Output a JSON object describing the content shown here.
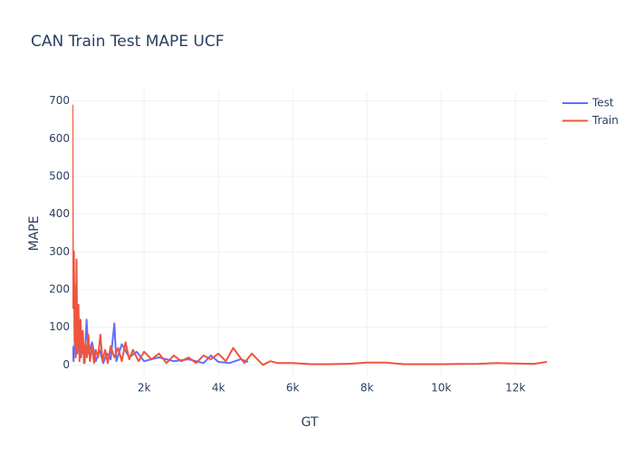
{
  "chart_data": {
    "type": "line",
    "title": "CAN Train Test MAPE UCF",
    "x_label": "GT",
    "y_label": "MAPE",
    "xlim": [
      70,
      12850
    ],
    "ylim": [
      -28,
      728
    ],
    "xticks": [
      {
        "value": 2000,
        "label": "2k"
      },
      {
        "value": 4000,
        "label": "4k"
      },
      {
        "value": 6000,
        "label": "6k"
      },
      {
        "value": 8000,
        "label": "8k"
      },
      {
        "value": 10000,
        "label": "10k"
      },
      {
        "value": 12000,
        "label": "12k"
      }
    ],
    "yticks": [
      0,
      100,
      200,
      300,
      400,
      500,
      600,
      700
    ],
    "grid": true,
    "legend": "top-right",
    "series": [
      {
        "name": "Test",
        "color": "#636efa",
        "x": [
          80,
          100,
          150,
          200,
          260,
          300,
          350,
          400,
          450,
          500,
          600,
          700,
          800,
          900,
          1000,
          1100,
          1200,
          1250,
          1400,
          1600,
          1800,
          2000,
          2400,
          2800,
          3200,
          3600,
          3800,
          4000,
          4300,
          4600,
          4800
        ],
        "values": [
          50,
          10,
          80,
          30,
          110,
          20,
          60,
          5,
          120,
          30,
          60,
          10,
          40,
          5,
          30,
          15,
          110,
          10,
          55,
          20,
          35,
          10,
          20,
          10,
          15,
          5,
          25,
          8,
          5,
          15,
          8
        ]
      },
      {
        "name": "Train",
        "color": "#ef553b",
        "x": [
          70,
          80,
          95,
          110,
          125,
          140,
          160,
          180,
          200,
          230,
          260,
          290,
          320,
          350,
          380,
          420,
          460,
          500,
          540,
          600,
          650,
          700,
          760,
          820,
          880,
          950,
          1020,
          1100,
          1200,
          1300,
          1400,
          1500,
          1600,
          1700,
          1850,
          2000,
          2200,
          2400,
          2600,
          2800,
          3000,
          3200,
          3400,
          3600,
          3800,
          4000,
          4200,
          4400,
          4700,
          4900,
          5200,
          5400,
          5600,
          6000,
          6500,
          7000,
          7500,
          8000,
          8500,
          9000,
          10000,
          11000,
          11500,
          12000,
          12500,
          12850
        ],
        "values": [
          690,
          320,
          150,
          300,
          60,
          210,
          20,
          280,
          40,
          160,
          10,
          120,
          30,
          90,
          5,
          60,
          20,
          80,
          10,
          50,
          5,
          40,
          20,
          80,
          10,
          40,
          5,
          50,
          20,
          45,
          10,
          60,
          15,
          40,
          10,
          35,
          15,
          30,
          5,
          25,
          10,
          20,
          5,
          25,
          15,
          30,
          10,
          45,
          5,
          30,
          0,
          10,
          5,
          5,
          2,
          2,
          3,
          6,
          6,
          2,
          2,
          3,
          5,
          4,
          3,
          8
        ]
      }
    ]
  }
}
